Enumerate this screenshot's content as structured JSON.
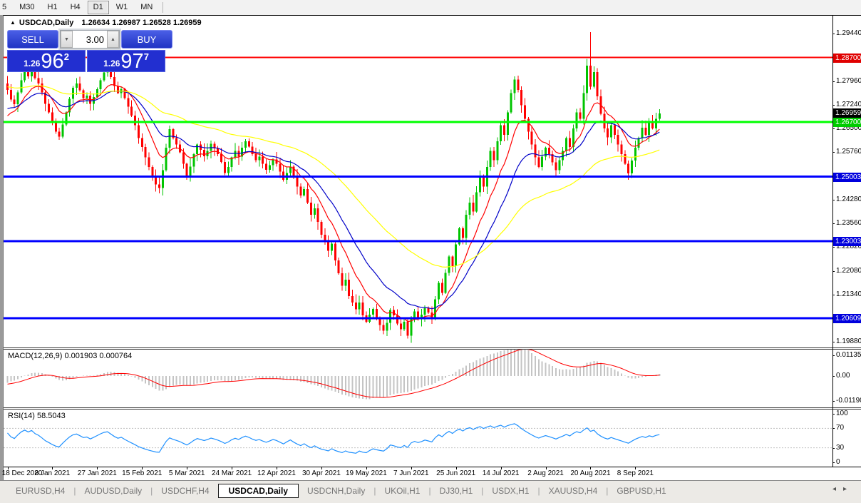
{
  "toolbar": {
    "periods": [
      "5",
      "M30",
      "H1",
      "H4",
      "D1",
      "W1",
      "MN"
    ],
    "active": "D1"
  },
  "chart": {
    "symbol_title": "USDCAD,Daily",
    "ohlc": {
      "open": "1.26634",
      "high": "1.26987",
      "low": "1.26528",
      "close": "1.26959"
    }
  },
  "trade_panel": {
    "sell_label": "SELL",
    "buy_label": "BUY",
    "volume": "3.00",
    "sell_quote": {
      "prefix": "1.26",
      "big": "96",
      "sup": "2"
    },
    "buy_quote": {
      "prefix": "1.26",
      "big": "97",
      "sup": "7"
    }
  },
  "tabs": {
    "items": [
      "EURUSD,H4",
      "AUDUSD,Daily",
      "USDCHF,H4",
      "USDCAD,Daily",
      "USDCNH,Daily",
      "UKOil,H1",
      "DJ30,H1",
      "USDX,H1",
      "XAUUSD,H4",
      "GBPUSD,H1"
    ],
    "active_index": 3,
    "scroll_left": "◂",
    "scroll_right": "▸"
  },
  "chart_data": [
    {
      "type": "candlestick",
      "symbol": "USDCAD",
      "timeframe": "Daily",
      "up_color": "#00C400",
      "down_color": "#FF0000",
      "y_range": [
        1.197,
        1.3
      ],
      "y_ticks": [
        {
          "label": "1.29440",
          "value": 1.2944
        },
        {
          "label": "1.27960",
          "value": 1.2796
        },
        {
          "label": "1.27240",
          "value": 1.2724
        },
        {
          "label": "1.26500",
          "value": 1.265
        },
        {
          "label": "1.25760",
          "value": 1.2576
        },
        {
          "label": "1.24280",
          "value": 1.2428
        },
        {
          "label": "1.23560",
          "value": 1.2356
        },
        {
          "label": "1.22820",
          "value": 1.2282
        },
        {
          "label": "1.22080",
          "value": 1.2208
        },
        {
          "label": "1.21340",
          "value": 1.2134
        },
        {
          "label": "1.19880",
          "value": 1.1988
        }
      ],
      "h_lines": [
        {
          "label": "1.28700",
          "value": 1.287,
          "color": "#FF0000",
          "label_bg": "#E00000",
          "thickness": 2
        },
        {
          "label": "1.26700",
          "value": 1.267,
          "color": "#00FF00",
          "label_bg": "#00CC00",
          "thickness": 3
        },
        {
          "label": "1.25003",
          "value": 1.25003,
          "color": "#0000FF",
          "label_bg": "#0000DD",
          "thickness": 3
        },
        {
          "label": "1.23003",
          "value": 1.23003,
          "color": "#0000FF",
          "label_bg": "#0000DD",
          "thickness": 3
        },
        {
          "label": "1.20609",
          "value": 1.20609,
          "color": "#0000FF",
          "label_bg": "#0000DD",
          "thickness": 3
        }
      ],
      "current_price": {
        "label": "1.26959",
        "value": 1.26959,
        "label_bg": "#000000"
      },
      "x_labels": [
        "18 Dec 2020",
        "8 Jan 2021",
        "27 Jan 2021",
        "15 Feb 2021",
        "5 Mar 2021",
        "24 Mar 2021",
        "12 Apr 2021",
        "30 Apr 2021",
        "19 May 2021",
        "7 Jun 2021",
        "25 Jun 2021",
        "14 Jul 2021",
        "2 Aug 2021",
        "20 Aug 2021",
        "8 Sep 2021"
      ],
      "x_label_bar_indices": [
        0,
        13,
        26,
        39,
        52,
        65,
        78,
        91,
        104,
        117,
        130,
        143,
        156,
        169,
        182
      ],
      "first_open": 1.279,
      "closes": [
        1.277,
        1.274,
        1.2725,
        1.2762,
        1.28,
        1.2828,
        1.2812,
        1.2835,
        1.2806,
        1.279,
        1.2762,
        1.2726,
        1.27,
        1.2668,
        1.264,
        1.2625,
        1.2662,
        1.27,
        1.2742,
        1.2776,
        1.279,
        1.2768,
        1.2744,
        1.2752,
        1.2726,
        1.2748,
        1.2772,
        1.28,
        1.2824,
        1.2836,
        1.281,
        1.2782,
        1.276,
        1.2772,
        1.2744,
        1.2718,
        1.269,
        1.266,
        1.262,
        1.2592,
        1.256,
        1.253,
        1.2504,
        1.2476,
        1.2465,
        1.252,
        1.259,
        1.2648,
        1.262,
        1.26,
        1.2576,
        1.254,
        1.2502,
        1.2532,
        1.257,
        1.26,
        1.2584,
        1.2564,
        1.258,
        1.2602,
        1.2588,
        1.257,
        1.2546,
        1.2512,
        1.253,
        1.256,
        1.258,
        1.2562,
        1.259,
        1.261,
        1.2594,
        1.257,
        1.2552,
        1.2562,
        1.254,
        1.2522,
        1.2536,
        1.2554,
        1.254,
        1.2516,
        1.249,
        1.2512,
        1.2532,
        1.25,
        1.247,
        1.2442,
        1.2462,
        1.242,
        1.2382,
        1.2402,
        1.236,
        1.232,
        1.2298,
        1.227,
        1.2292,
        1.224,
        1.22,
        1.2162,
        1.218,
        1.213,
        1.211,
        1.2088,
        1.211,
        1.207,
        1.205,
        1.2072,
        1.209,
        1.2062,
        1.204,
        1.2022,
        1.2046,
        1.2086,
        1.207,
        1.2044,
        1.2026,
        1.205,
        1.2006,
        1.206,
        1.2082,
        1.2058,
        1.2072,
        1.2092,
        1.2078,
        1.2062,
        1.212,
        1.217,
        1.214,
        1.2202,
        1.2252,
        1.2222,
        1.229,
        1.234,
        1.231,
        1.2382,
        1.242,
        1.2392,
        1.2452,
        1.25,
        1.247,
        1.253,
        1.258,
        1.2552,
        1.261,
        1.266,
        1.263,
        1.27,
        1.276,
        1.2802,
        1.277,
        1.2722,
        1.268,
        1.264,
        1.26,
        1.256,
        1.253,
        1.2562,
        1.259,
        1.257,
        1.2545,
        1.252,
        1.2552,
        1.258,
        1.262,
        1.2592,
        1.265,
        1.27,
        1.268,
        1.276,
        1.2845,
        1.278,
        1.2825,
        1.275,
        1.2695,
        1.265,
        1.2622,
        1.266,
        1.263,
        1.26,
        1.257,
        1.254,
        1.251,
        1.255,
        1.259,
        1.262,
        1.2652,
        1.263,
        1.2668,
        1.265,
        1.268,
        1.2696
      ],
      "wick_overrides": {
        "169": {
          "high": 1.2949
        },
        "116": {
          "low": 1.1998
        },
        "147": {
          "high": 1.2812
        }
      },
      "warmup": {
        "start": 1.292,
        "end": 1.264,
        "count": 45,
        "wiggle": 0.0006
      },
      "moving_averages": [
        {
          "name": "fast-ema",
          "period": 10,
          "color": "#FF0000"
        },
        {
          "name": "medium-ema",
          "period": 21,
          "color": "#0000C8"
        },
        {
          "name": "slow-ema",
          "period": 55,
          "color": "#FFFF00"
        }
      ]
    },
    {
      "type": "macd-histogram",
      "label": "MACD(12,26,9) 0.001903 0.000764",
      "params": [
        12,
        26,
        9
      ],
      "macd_value": "0.001903",
      "signal_value": "0.000764",
      "histogram_color": "#C4C4C4",
      "signal_color": "#FF0000",
      "y_ticks": [
        {
          "label": "0.01135",
          "value": 0.01135
        },
        {
          "label": "0.00",
          "value": 0
        },
        {
          "label": "-0.01190",
          "value": -0.0119
        }
      ]
    },
    {
      "type": "rsi-line",
      "label": "RSI(14) 58.5043",
      "period": 14,
      "value": "58.5043",
      "line_color": "#1E90FF",
      "levels": [
        70,
        30
      ],
      "level_color": "#C0C0C0",
      "y_ticks": [
        {
          "label": "100",
          "value": 100
        },
        {
          "label": "70",
          "value": 70
        },
        {
          "label": "30",
          "value": 30
        },
        {
          "label": "0",
          "value": 0
        }
      ]
    }
  ]
}
